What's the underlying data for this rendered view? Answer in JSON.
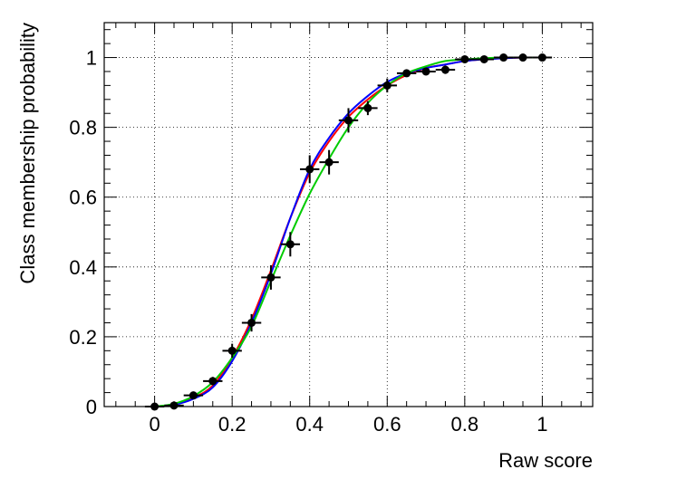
{
  "chart_data": {
    "type": "line",
    "title": "",
    "xlabel": "Raw score",
    "ylabel": "Class membership probability",
    "xlim": [
      -0.13,
      1.13
    ],
    "ylim": [
      0,
      1.1
    ],
    "grid": true,
    "x_ticks": [
      0,
      0.2,
      0.4,
      0.6,
      0.8,
      1
    ],
    "x_tick_labels": [
      "0",
      "0.2",
      "0.4",
      "0.6",
      "0.8",
      "1"
    ],
    "y_ticks": [
      0,
      0.2,
      0.4,
      0.6,
      0.8,
      1
    ],
    "y_tick_labels": [
      "0",
      "0.2",
      "0.4",
      "0.6",
      "0.8",
      "1"
    ],
    "points": {
      "x": [
        0.0,
        0.05,
        0.1,
        0.15,
        0.2,
        0.25,
        0.3,
        0.35,
        0.4,
        0.45,
        0.5,
        0.55,
        0.6,
        0.65,
        0.7,
        0.75,
        0.8,
        0.85,
        0.9,
        0.95,
        1.0
      ],
      "y": [
        0.0,
        0.003,
        0.032,
        0.073,
        0.16,
        0.24,
        0.37,
        0.465,
        0.68,
        0.7,
        0.82,
        0.855,
        0.92,
        0.955,
        0.96,
        0.965,
        0.995,
        0.995,
        1.0,
        1.0,
        1.0
      ],
      "yerr": [
        0.002,
        0.004,
        0.01,
        0.012,
        0.02,
        0.025,
        0.035,
        0.035,
        0.04,
        0.035,
        0.035,
        0.02,
        0.02,
        0.01,
        0.01,
        0.012,
        0.004,
        0.004,
        0.002,
        0.002,
        0.002
      ],
      "xerr": 0.025,
      "color": "#000000"
    },
    "series": [
      {
        "color": "#ff0000",
        "x": [
          0.0,
          0.05,
          0.1,
          0.15,
          0.2,
          0.25,
          0.3,
          0.35,
          0.4,
          0.45,
          0.5,
          0.55,
          0.6,
          0.65,
          0.7,
          0.75,
          0.8,
          0.85,
          0.9,
          0.95,
          1.0
        ],
        "y": [
          0.0,
          0.006,
          0.025,
          0.06,
          0.14,
          0.25,
          0.39,
          0.54,
          0.67,
          0.76,
          0.83,
          0.88,
          0.92,
          0.95,
          0.97,
          0.98,
          0.99,
          0.995,
          0.998,
          1.0,
          1.0
        ]
      },
      {
        "color": "#0000ff",
        "x": [
          0.0,
          0.05,
          0.1,
          0.15,
          0.2,
          0.25,
          0.3,
          0.35,
          0.4,
          0.45,
          0.5,
          0.55,
          0.6,
          0.65,
          0.7,
          0.75,
          0.8,
          0.85,
          0.9,
          0.95,
          1.0
        ],
        "y": [
          0.0,
          0.005,
          0.022,
          0.055,
          0.13,
          0.24,
          0.38,
          0.54,
          0.68,
          0.77,
          0.84,
          0.89,
          0.93,
          0.955,
          0.97,
          0.98,
          0.99,
          0.995,
          0.998,
          1.0,
          1.0
        ]
      },
      {
        "color": "#00cc00",
        "x": [
          0.0,
          0.05,
          0.1,
          0.15,
          0.2,
          0.25,
          0.3,
          0.35,
          0.4,
          0.45,
          0.5,
          0.55,
          0.6,
          0.65,
          0.7,
          0.75,
          0.8,
          0.85,
          0.9,
          0.95,
          1.0
        ],
        "y": [
          0.0,
          0.008,
          0.03,
          0.07,
          0.14,
          0.23,
          0.36,
          0.49,
          0.61,
          0.71,
          0.8,
          0.87,
          0.92,
          0.955,
          0.975,
          0.99,
          0.995,
          0.998,
          1.0,
          1.0,
          1.0
        ]
      }
    ]
  }
}
